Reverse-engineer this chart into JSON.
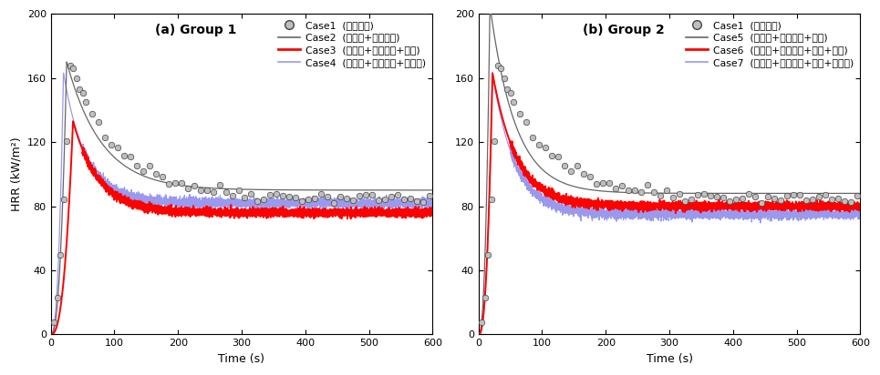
{
  "panel_a_title": "(a) Group 1",
  "panel_b_title": "(b) Group 2",
  "xlabel": "Time (s)",
  "ylabel": "HRR (kW/m²)",
  "xlim": [
    0,
    600
  ],
  "ylim": [
    0,
    200
  ],
  "yticks": [
    0,
    40,
    80,
    120,
    160,
    200
  ],
  "xticks": [
    0,
    100,
    200,
    300,
    400,
    500,
    600
  ],
  "case1_label": "Case1",
  "case1_desc": "(도막없음)",
  "case2_label": "Case2",
  "case2_desc": "(면닭기+아교포수)",
  "case3_label": "Case3",
  "case3_desc_pre": "(면닭기+아교포수+",
  "case3_desc_red": "뇰동",
  "case3_desc_post": ")",
  "case4_label": "Case4",
  "case4_desc_pre": "(면닭기+아교포수+",
  "case4_desc_blue": "석간주",
  "case4_desc_post": ")",
  "case5_label": "Case5",
  "case5_desc": "(면닭기+아교포수+백토)",
  "case6_label": "Case6",
  "case6_desc_pre": "(면닭기+아교포수+백토+",
  "case6_desc_red": "뇰동",
  "case6_desc_post": ")",
  "case7_label": "Case7",
  "case7_desc_pre": "(면닭기+아교포수+백토+",
  "case7_desc_blue": "석간주",
  "case7_desc_post": ")",
  "color_gray_scatter_face": "#bebebe",
  "color_gray_scatter_edge": "#444444",
  "color_case2": "#666666",
  "color_case3": "#ff0000",
  "color_case4": "#9999ee",
  "color_case5": "#666666",
  "color_case6": "#ff0000",
  "color_case7": "#9999ee",
  "color_red_text": "#ff0000",
  "color_blue_text": "#6699ff"
}
